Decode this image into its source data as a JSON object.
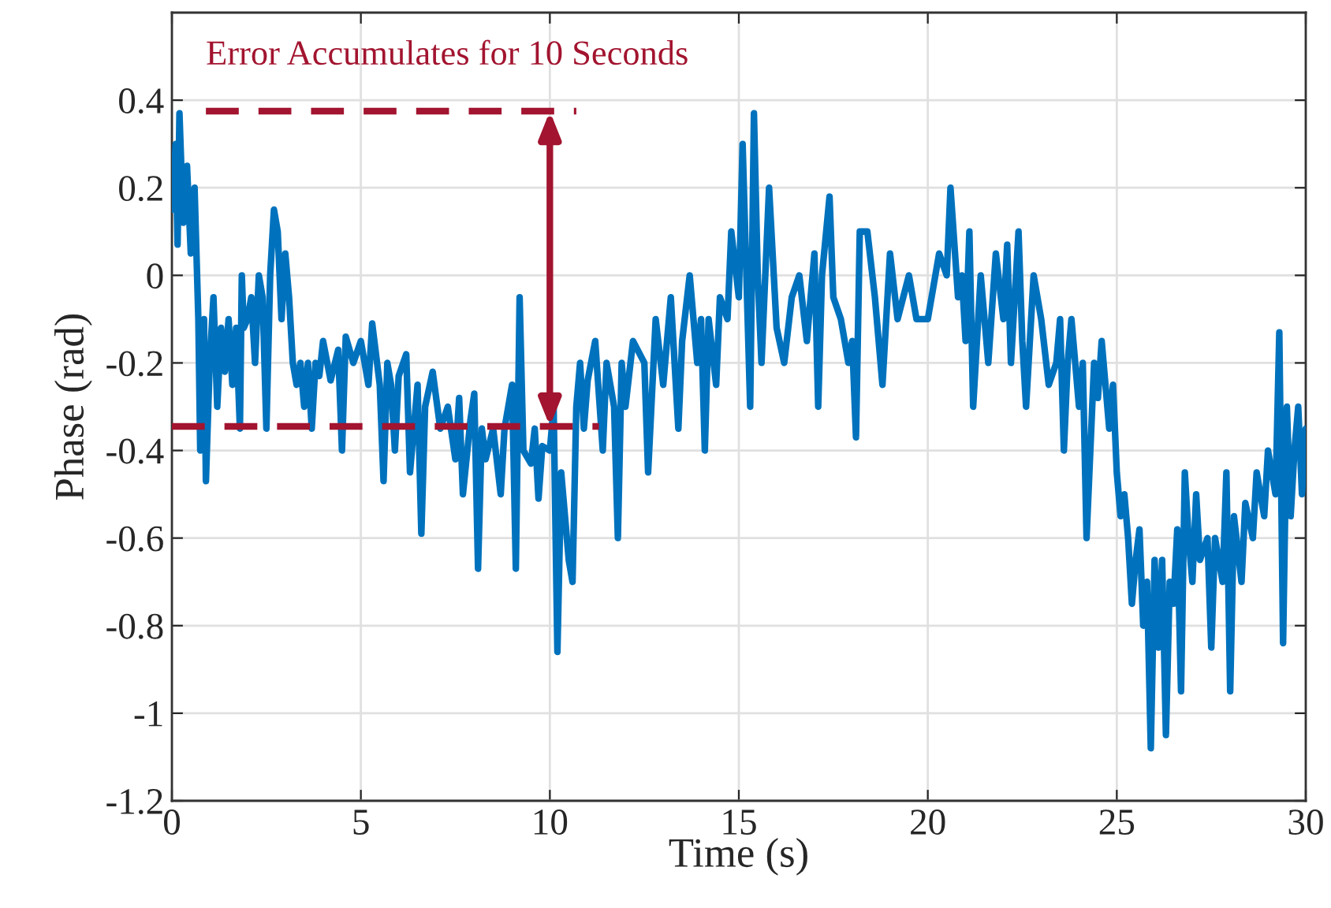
{
  "chart_data": {
    "type": "line",
    "xlabel": "Time (s)",
    "ylabel": "Phase (rad)",
    "xlim": [
      0,
      30
    ],
    "xticks": [
      0,
      5,
      10,
      15,
      20,
      25,
      30
    ],
    "ylim": [
      -1.2,
      0.6
    ],
    "yticks": [
      -1.2,
      -1,
      -0.8,
      -0.6,
      -0.4,
      -0.2,
      0,
      0.2,
      0.4
    ],
    "grid": true,
    "marker": "none",
    "series": [
      {
        "color": "#0072bd",
        "line_style": "solid",
        "x": [
          0.0,
          0.1,
          0.15,
          0.2,
          0.3,
          0.4,
          0.5,
          0.6,
          0.7,
          0.75,
          0.85,
          0.9,
          1.0,
          1.1,
          1.2,
          1.3,
          1.4,
          1.5,
          1.6,
          1.7,
          1.8,
          1.85,
          1.9,
          2.0,
          2.1,
          2.2,
          2.3,
          2.4,
          2.5,
          2.6,
          2.7,
          2.8,
          2.9,
          3.0,
          3.1,
          3.2,
          3.3,
          3.4,
          3.5,
          3.6,
          3.7,
          3.8,
          3.9,
          4.0,
          4.2,
          4.4,
          4.5,
          4.6,
          4.8,
          5.0,
          5.2,
          5.3,
          5.5,
          5.6,
          5.7,
          5.8,
          5.9,
          6.0,
          6.2,
          6.3,
          6.5,
          6.6,
          6.7,
          6.9,
          7.1,
          7.3,
          7.5,
          7.6,
          7.7,
          7.9,
          8.0,
          8.1,
          8.2,
          8.3,
          8.5,
          8.7,
          8.8,
          9.0,
          9.1,
          9.2,
          9.3,
          9.5,
          9.6,
          9.7,
          9.8,
          10.0,
          10.1,
          10.2,
          10.3,
          10.5,
          10.6,
          10.7,
          10.8,
          10.9,
          11.0,
          11.2,
          11.4,
          11.5,
          11.7,
          11.8,
          11.9,
          12.0,
          12.2,
          12.5,
          12.6,
          12.8,
          13.0,
          13.2,
          13.4,
          13.5,
          13.7,
          13.9,
          14.0,
          14.1,
          14.2,
          14.4,
          14.5,
          14.7,
          14.8,
          15.0,
          15.1,
          15.3,
          15.4,
          15.5,
          15.6,
          15.8,
          16.0,
          16.2,
          16.4,
          16.6,
          16.8,
          17.0,
          17.1,
          17.2,
          17.4,
          17.5,
          17.7,
          17.9,
          18.0,
          18.1,
          18.2,
          18.4,
          18.6,
          18.8,
          19.0,
          19.2,
          19.5,
          19.7,
          20.0,
          20.3,
          20.5,
          20.6,
          20.8,
          20.9,
          21.0,
          21.1,
          21.2,
          21.4,
          21.6,
          21.8,
          22.0,
          22.1,
          22.2,
          22.4,
          22.5,
          22.6,
          22.8,
          23.0,
          23.2,
          23.4,
          23.5,
          23.6,
          23.7,
          23.8,
          24.0,
          24.1,
          24.2,
          24.4,
          24.5,
          24.6,
          24.8,
          24.9,
          25.0,
          25.1,
          25.2,
          25.3,
          25.4,
          25.5,
          25.6,
          25.7,
          25.8,
          25.9,
          26.0,
          26.1,
          26.2,
          26.3,
          26.4,
          26.5,
          26.6,
          26.7,
          26.8,
          26.9,
          27.0,
          27.1,
          27.2,
          27.4,
          27.5,
          27.6,
          27.8,
          27.9,
          28.0,
          28.1,
          28.3,
          28.4,
          28.6,
          28.7,
          28.9,
          29.0,
          29.2,
          29.3,
          29.4,
          29.5,
          29.6,
          29.7,
          29.8,
          29.9,
          30.0
        ],
        "values": [
          0.15,
          0.3,
          0.07,
          0.37,
          0.12,
          0.25,
          0.05,
          0.2,
          -0.1,
          -0.4,
          -0.1,
          -0.47,
          -0.2,
          -0.05,
          -0.3,
          -0.12,
          -0.22,
          -0.1,
          -0.25,
          -0.12,
          -0.35,
          0.0,
          -0.12,
          -0.1,
          -0.05,
          -0.2,
          0.0,
          -0.05,
          -0.35,
          0.0,
          0.15,
          0.1,
          -0.1,
          0.05,
          -0.05,
          -0.2,
          -0.25,
          -0.2,
          -0.3,
          -0.2,
          -0.35,
          -0.2,
          -0.23,
          -0.15,
          -0.24,
          -0.17,
          -0.4,
          -0.14,
          -0.2,
          -0.15,
          -0.25,
          -0.11,
          -0.25,
          -0.47,
          -0.2,
          -0.25,
          -0.4,
          -0.23,
          -0.18,
          -0.45,
          -0.25,
          -0.59,
          -0.3,
          -0.22,
          -0.35,
          -0.3,
          -0.42,
          -0.28,
          -0.5,
          -0.33,
          -0.27,
          -0.67,
          -0.35,
          -0.42,
          -0.35,
          -0.5,
          -0.35,
          -0.25,
          -0.67,
          -0.05,
          -0.4,
          -0.43,
          -0.35,
          -0.51,
          -0.39,
          -0.4,
          -0.3,
          -0.86,
          -0.45,
          -0.65,
          -0.7,
          -0.3,
          -0.2,
          -0.35,
          -0.24,
          -0.15,
          -0.4,
          -0.2,
          -0.3,
          -0.6,
          -0.2,
          -0.3,
          -0.15,
          -0.2,
          -0.45,
          -0.1,
          -0.25,
          -0.05,
          -0.35,
          -0.15,
          0.0,
          -0.2,
          -0.1,
          -0.4,
          -0.1,
          -0.25,
          -0.05,
          -0.1,
          0.1,
          -0.05,
          0.3,
          -0.3,
          0.37,
          0.0,
          -0.2,
          0.2,
          -0.12,
          -0.2,
          -0.05,
          0.0,
          -0.15,
          0.05,
          -0.3,
          0.0,
          0.18,
          -0.05,
          -0.1,
          -0.2,
          -0.15,
          -0.37,
          0.1,
          0.1,
          -0.05,
          -0.25,
          0.05,
          -0.1,
          0.0,
          -0.1,
          -0.1,
          0.05,
          0.0,
          0.2,
          -0.05,
          0.0,
          -0.15,
          0.1,
          -0.3,
          0.0,
          -0.2,
          0.05,
          -0.1,
          0.07,
          -0.2,
          0.1,
          -0.15,
          -0.3,
          0.0,
          -0.1,
          -0.25,
          -0.2,
          -0.1,
          -0.4,
          -0.2,
          -0.1,
          -0.3,
          -0.2,
          -0.6,
          -0.2,
          -0.28,
          -0.15,
          -0.35,
          -0.25,
          -0.45,
          -0.55,
          -0.5,
          -0.6,
          -0.75,
          -0.65,
          -0.58,
          -0.8,
          -0.7,
          -1.08,
          -0.65,
          -0.85,
          -0.65,
          -1.05,
          -0.7,
          -0.75,
          -0.58,
          -0.95,
          -0.45,
          -0.6,
          -0.7,
          -0.5,
          -0.65,
          -0.6,
          -0.85,
          -0.6,
          -0.7,
          -0.45,
          -0.95,
          -0.55,
          -0.7,
          -0.52,
          -0.6,
          -0.45,
          -0.55,
          -0.4,
          -0.5,
          -0.13,
          -0.84,
          -0.3,
          -0.55,
          -0.4,
          -0.3,
          -0.5,
          -0.35
        ]
      },
      {
        "color": "#a2142f",
        "line_style": "dashed",
        "x": [
          0.9,
          10.7
        ],
        "values": [
          0.375,
          0.375
        ]
      },
      {
        "color": "#a2142f",
        "line_style": "dashed",
        "x": [
          0,
          11.3
        ],
        "values": [
          -0.345,
          -0.345
        ]
      }
    ],
    "annotations": [
      {
        "text": "Error Accumulates for 10 Seconds",
        "x": 10,
        "y": 0.375
      }
    ]
  }
}
